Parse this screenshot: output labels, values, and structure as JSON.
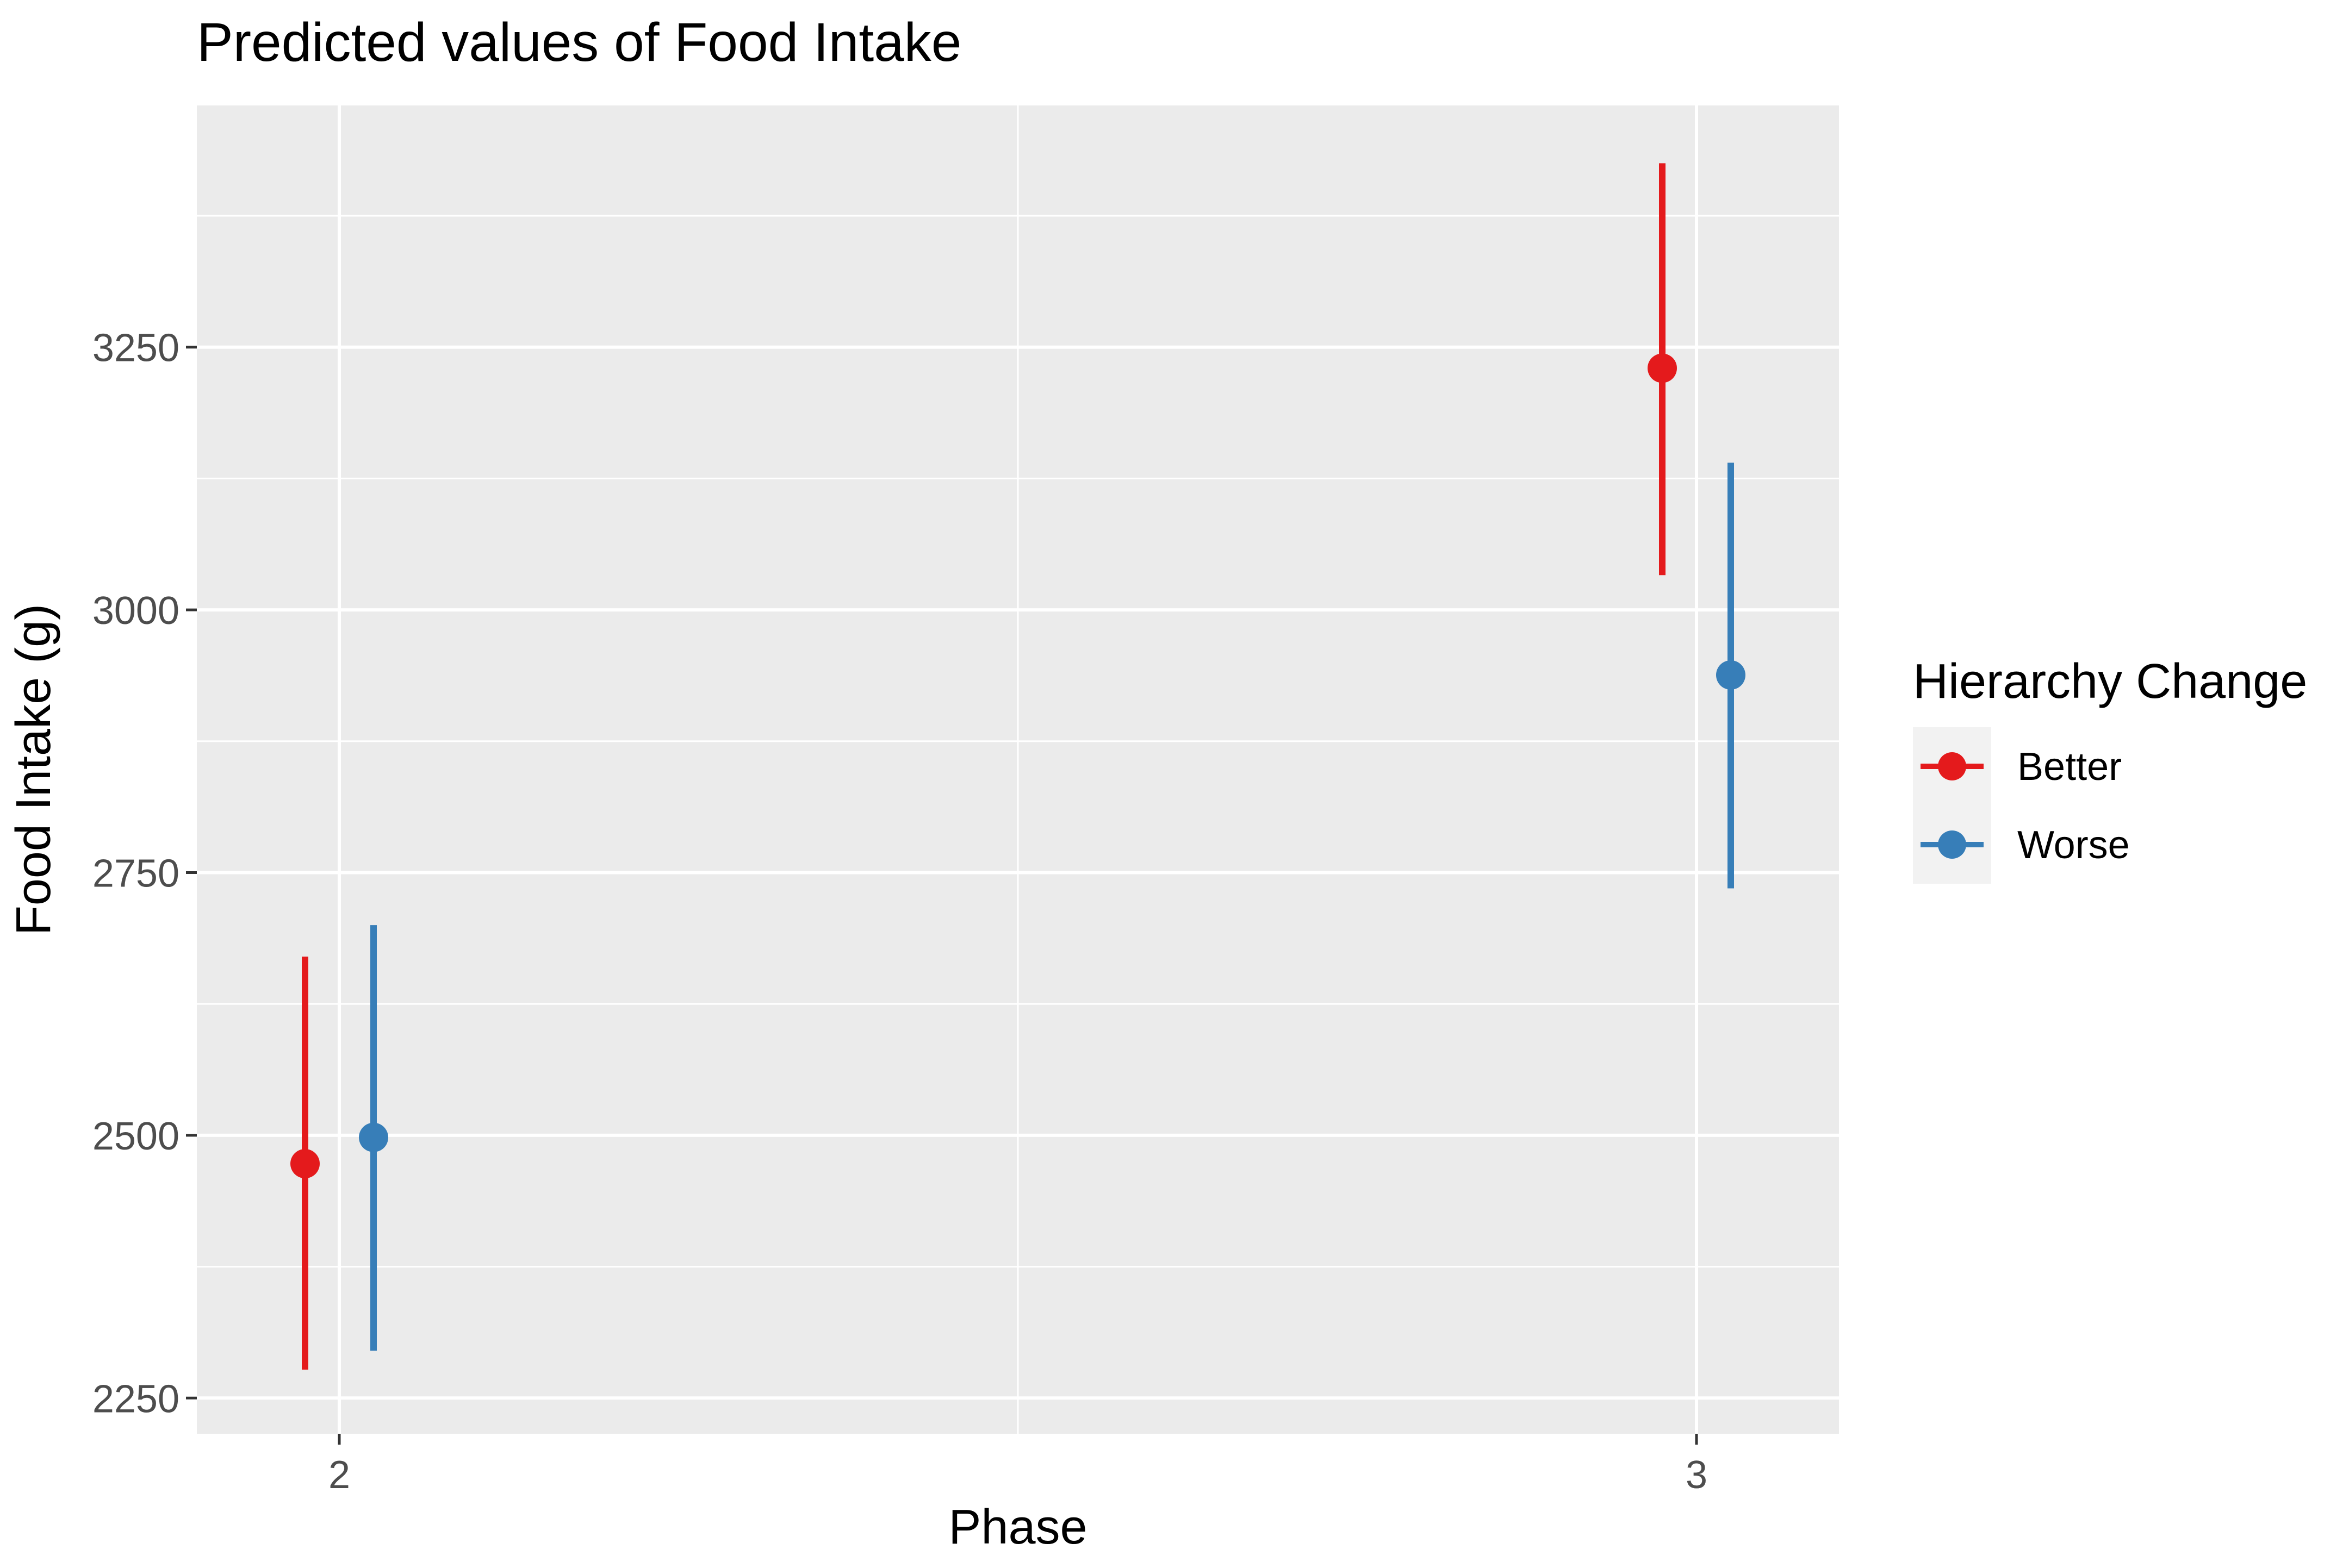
{
  "chart_data": {
    "type": "scatter",
    "title": "Predicted values of Food Intake",
    "xlabel": "Phase",
    "ylabel": "Food Intake (g)",
    "x_categories": [
      "2",
      "3"
    ],
    "y_ticks": [
      2250,
      2500,
      2750,
      3000,
      3250
    ],
    "y_tick_labels": [
      "2250",
      "2500",
      "2750",
      "3000",
      "3250"
    ],
    "ylim": [
      2216,
      3480
    ],
    "grid": true,
    "panel_background": "#EBEBEB",
    "legend": {
      "title": "Hierarchy Change",
      "position": "right"
    },
    "series": [
      {
        "name": "Better",
        "color": "#E41A1C",
        "points": [
          {
            "x": "2",
            "y": 2473,
            "ymin": 2277,
            "ymax": 2670
          },
          {
            "x": "3",
            "y": 3230,
            "ymin": 3033,
            "ymax": 3425
          }
        ]
      },
      {
        "name": "Worse",
        "color": "#377EB8",
        "points": [
          {
            "x": "2",
            "y": 2498,
            "ymin": 2295,
            "ymax": 2700
          },
          {
            "x": "3",
            "y": 2938,
            "ymin": 2735,
            "ymax": 3140
          }
        ]
      }
    ]
  }
}
